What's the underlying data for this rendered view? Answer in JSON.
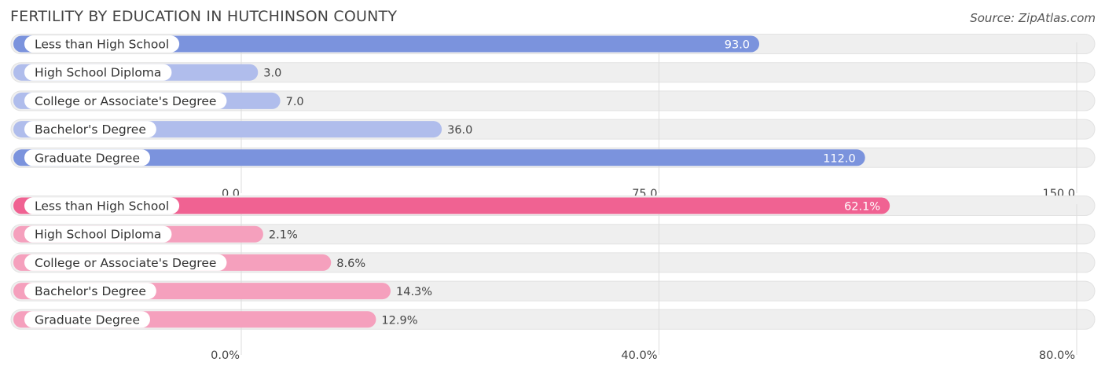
{
  "title": "FERTILITY BY EDUCATION IN HUTCHINSON COUNTY",
  "source": "Source: ZipAtlas.com",
  "chart_data": [
    {
      "type": "bar",
      "orientation": "horizontal",
      "categories": [
        "Less than High School",
        "High School Diploma",
        "College or Associate's Degree",
        "Bachelor's Degree",
        "Graduate Degree"
      ],
      "values": [
        93.0,
        3.0,
        7.0,
        36.0,
        112.0
      ],
      "value_labels": [
        "93.0",
        "3.0",
        "7.0",
        "36.0",
        "112.0"
      ],
      "xlim": [
        0,
        150
      ],
      "ticks": [
        0,
        75,
        150
      ],
      "tick_labels": [
        "0.0",
        "75.0",
        "150.0"
      ],
      "grid": true,
      "colors": {
        "strong": "#7b93dd",
        "light": "#b0bdec",
        "track": "#efefef"
      },
      "emphasized": [
        0,
        4
      ]
    },
    {
      "type": "bar",
      "orientation": "horizontal",
      "categories": [
        "Less than High School",
        "High School Diploma",
        "College or Associate's Degree",
        "Bachelor's Degree",
        "Graduate Degree"
      ],
      "values": [
        62.1,
        2.1,
        8.6,
        14.3,
        12.9
      ],
      "value_labels": [
        "62.1%",
        "2.1%",
        "8.6%",
        "14.3%",
        "12.9%"
      ],
      "xlim": [
        0,
        80
      ],
      "ticks": [
        0,
        40,
        80
      ],
      "tick_labels": [
        "0.0%",
        "40.0%",
        "80.0%"
      ],
      "grid": true,
      "colors": {
        "strong": "#f06292",
        "light": "#f5a0bd",
        "track": "#efefef"
      },
      "emphasized": [
        0
      ]
    }
  ]
}
